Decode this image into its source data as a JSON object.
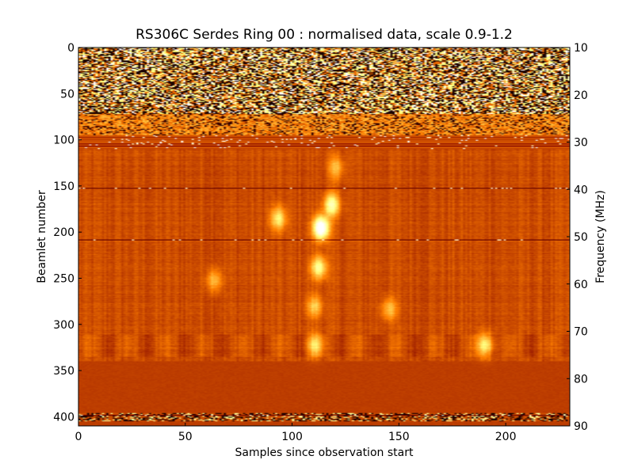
{
  "chart_data": {
    "type": "heatmap",
    "title": "RS306C Serdes Ring 00 : normalised data, scale 0.9-1.2",
    "xlabel": "Samples since observation start",
    "ylabel": "Beamlet number",
    "ylabel_right": "Frequency (MHz)",
    "xlim": [
      0,
      230
    ],
    "ylim": [
      410,
      0
    ],
    "ylim_right": [
      90,
      10
    ],
    "color_scale": [
      0.9,
      1.2
    ],
    "colormap": "afmhot",
    "xticks": [
      "0",
      "50",
      "100",
      "150",
      "200"
    ],
    "yticks": [
      "0",
      "50",
      "100",
      "150",
      "200",
      "250",
      "300",
      "350",
      "400"
    ],
    "yticks_right": [
      "10",
      "20",
      "30",
      "40",
      "50",
      "60",
      "70",
      "80",
      "90"
    ],
    "bright_features": [
      {
        "sample": 113,
        "beamlet": 195,
        "strength": 1.0
      },
      {
        "sample": 118,
        "beamlet": 170,
        "strength": 0.6
      },
      {
        "sample": 93,
        "beamlet": 185,
        "strength": 0.45
      },
      {
        "sample": 112,
        "beamlet": 238,
        "strength": 0.55
      },
      {
        "sample": 120,
        "beamlet": 130,
        "strength": 0.3
      },
      {
        "sample": 110,
        "beamlet": 280,
        "strength": 0.35
      },
      {
        "sample": 110,
        "beamlet": 322,
        "strength": 0.4
      },
      {
        "sample": 190,
        "beamlet": 322,
        "strength": 0.5
      },
      {
        "sample": 145,
        "beamlet": 283,
        "strength": 0.3
      },
      {
        "sample": 63,
        "beamlet": 252,
        "strength": 0.3
      }
    ],
    "noisy_band_beamlets": [
      0,
      110
    ],
    "dark_lines_beamlets": [
      152,
      208,
      398
    ]
  }
}
